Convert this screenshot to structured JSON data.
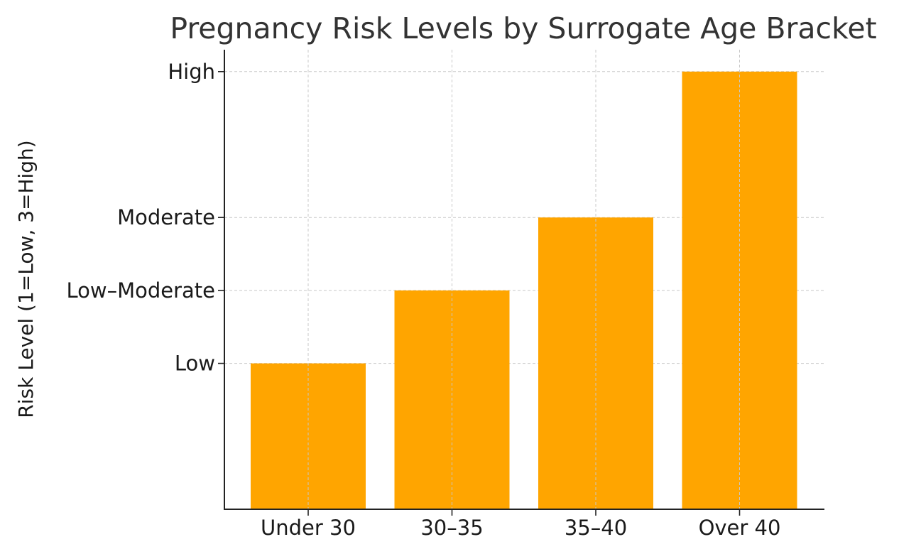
{
  "chart_data": {
    "type": "bar",
    "title": "Pregnancy Risk Levels by Surrogate Age Bracket",
    "xlabel": "",
    "ylabel": "Risk Level (1=Low, 3=High)",
    "categories": [
      "Under 30",
      "30–35",
      "35–40",
      "Over 40"
    ],
    "values": [
      1,
      1.5,
      2,
      3
    ],
    "ylim": [
      0,
      3.15
    ],
    "yticks": [
      {
        "value": 1,
        "label": "Low"
      },
      {
        "value": 1.5,
        "label": "Low–Moderate"
      },
      {
        "value": 2,
        "label": "Moderate"
      },
      {
        "value": 3,
        "label": "High"
      }
    ],
    "grid": true,
    "bar_color": "#FFA500"
  }
}
